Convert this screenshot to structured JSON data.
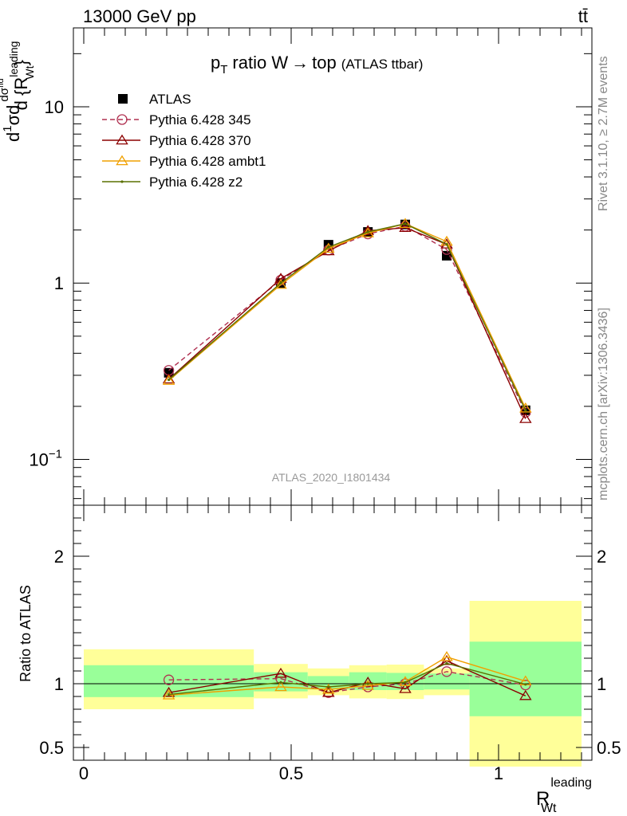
{
  "header": {
    "energy_label": "13000 GeV pp",
    "process_label": "tt̄"
  },
  "side_labels": {
    "rivet": "Rivet 3.1.10, ≥ 2.7M events",
    "source": "mcplots.cern.ch [arXiv:1306.3436]"
  },
  "chart_data": [
    {
      "type": "line",
      "panel": "main",
      "title": "p_T ratio W → top (ATLAS ttbar)",
      "title_main": "ratio W",
      "title_arrow": "→",
      "title_top": "top",
      "title_suffix": "(ATLAS ttbar)",
      "title_p": "p",
      "title_sub": "T",
      "analysis_tag": "ATLAS_2020_I1801434",
      "ylabel_parts": [
        "d",
        "1",
        "σ",
        "d",
        "dσ",
        "fid",
        "d {R",
        "leading",
        "Wt",
        "}"
      ],
      "xlabel": "R",
      "xlabel_sup": "leading",
      "xlabel_sub": "Wt",
      "yscale": "log",
      "xlim": [
        -0.025,
        1.225
      ],
      "ylim": [
        0.055,
        28
      ],
      "yticks": [
        {
          "value": 0.1,
          "base": "10",
          "exp": "−1"
        },
        {
          "value": 1,
          "base": "1",
          "exp": ""
        },
        {
          "value": 10,
          "base": "10",
          "exp": ""
        }
      ],
      "xticks": [
        {
          "value": 0,
          "label": "0"
        },
        {
          "value": 0.5,
          "label": "0.5"
        },
        {
          "value": 1,
          "label": "1"
        }
      ],
      "legend_position": "top-left",
      "x": [
        0.205,
        0.475,
        0.59,
        0.685,
        0.775,
        0.875,
        1.065
      ],
      "series": [
        {
          "name": "ATLAS",
          "kind": "data",
          "color": "#000000",
          "values": [
            0.31,
            1.0,
            1.65,
            1.95,
            2.15,
            1.43,
            0.19
          ]
        },
        {
          "name": "Pythia 6.428 345",
          "kind": "mc",
          "color": "#b03050",
          "dash": true,
          "marker": "circle",
          "values": [
            0.32,
            1.04,
            1.54,
            1.9,
            2.1,
            1.55,
            0.185
          ]
        },
        {
          "name": "Pythia 6.428 370",
          "kind": "mc",
          "color": "#8b0000",
          "dash": false,
          "marker": "triangle",
          "values": [
            0.285,
            1.06,
            1.52,
            1.98,
            2.06,
            1.66,
            0.17
          ]
        },
        {
          "name": "Pythia 6.428 ambt1",
          "kind": "mc",
          "color": "#f0a000",
          "dash": false,
          "marker": "triangle",
          "values": [
            0.28,
            0.98,
            1.57,
            1.92,
            2.17,
            1.72,
            0.195
          ]
        },
        {
          "name": "Pythia 6.428 z2",
          "kind": "mc",
          "color": "#5a7000",
          "dash": false,
          "marker": "dot",
          "values": [
            0.283,
            1.0,
            1.6,
            1.95,
            2.17,
            1.66,
            0.19
          ]
        }
      ]
    },
    {
      "type": "line",
      "panel": "ratio",
      "ylabel": "Ratio to ATLAS",
      "xlim": [
        -0.025,
        1.225
      ],
      "ylim": [
        0.4,
        2.4
      ],
      "yticks": [
        {
          "value": 0.5,
          "label": "0.5"
        },
        {
          "value": 1,
          "label": "1"
        },
        {
          "value": 2,
          "label": "2"
        }
      ],
      "bands": [
        {
          "x0": 0.0,
          "x1": 0.41,
          "stat": [
            0.895,
            1.145
          ],
          "total": [
            0.8,
            1.27
          ]
        },
        {
          "x0": 0.41,
          "x1": 0.54,
          "stat": [
            0.94,
            1.09
          ],
          "total": [
            0.885,
            1.155
          ]
        },
        {
          "x0": 0.54,
          "x1": 0.64,
          "stat": [
            0.955,
            1.06
          ],
          "total": [
            0.91,
            1.12
          ]
        },
        {
          "x0": 0.64,
          "x1": 0.73,
          "stat": [
            0.95,
            1.09
          ],
          "total": [
            0.885,
            1.145
          ]
        },
        {
          "x0": 0.73,
          "x1": 0.82,
          "stat": [
            0.95,
            1.085
          ],
          "total": [
            0.88,
            1.15
          ]
        },
        {
          "x0": 0.82,
          "x1": 0.93,
          "stat": [
            0.955,
            1.08
          ],
          "total": [
            0.91,
            1.12
          ]
        },
        {
          "x0": 0.93,
          "x1": 1.2,
          "stat": [
            0.745,
            1.33
          ],
          "total": [
            0.35,
            1.65
          ]
        }
      ],
      "series": [
        {
          "name": "Pythia 6.428 345",
          "color": "#b03050",
          "dash": true,
          "marker": "circle",
          "values": [
            1.03,
            1.04,
            0.93,
            0.975,
            1.0,
            1.095,
            0.99
          ]
        },
        {
          "name": "Pythia 6.428 370",
          "color": "#8b0000",
          "dash": false,
          "marker": "triangle",
          "values": [
            0.93,
            1.08,
            0.93,
            1.01,
            0.96,
            1.18,
            0.905
          ]
        },
        {
          "name": "Pythia 6.428 ambt1",
          "color": "#f0a000",
          "dash": false,
          "marker": "triangle",
          "values": [
            0.91,
            0.975,
            0.955,
            0.985,
            1.015,
            1.21,
            1.02
          ]
        },
        {
          "name": "Pythia 6.428 z2",
          "color": "#5a7000",
          "dash": false,
          "marker": "dot",
          "values": [
            0.915,
            1.01,
            0.975,
            1.0,
            1.01,
            1.16,
            0.995
          ]
        }
      ]
    }
  ]
}
